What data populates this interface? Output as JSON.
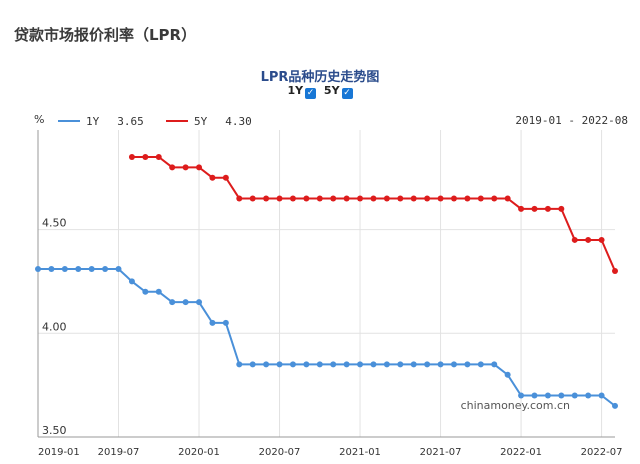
{
  "page_title": "贷款市场报价利率（LPR）",
  "chart_title": "LPR品种历史走势图",
  "toggles": [
    {
      "label": "1Y",
      "checked": true
    },
    {
      "label": "5Y",
      "checked": true
    }
  ],
  "date_range": "2019-01 - 2022-08",
  "watermark": "chinamoney.com.cn",
  "chart_data": {
    "type": "line",
    "ylabel": "%",
    "ylim": [
      3.5,
      4.98
    ],
    "yticks": [
      "4.50",
      "4.00",
      "3.50"
    ],
    "ytick_values": [
      4.5,
      4.0,
      3.5
    ],
    "grid": true,
    "xlim": [
      "2019-01",
      "2022-08"
    ],
    "xticks": [
      "2019-01",
      "2019-07",
      "2020-01",
      "2020-07",
      "2021-01",
      "2021-07",
      "2022-01",
      "2022-07"
    ],
    "legend_position": "top-left",
    "series": [
      {
        "name": "1Y",
        "latest_label": "3.65",
        "color": "#4a90d9",
        "points": [
          [
            "2019-01",
            4.31
          ],
          [
            "2019-02",
            4.31
          ],
          [
            "2019-03",
            4.31
          ],
          [
            "2019-04",
            4.31
          ],
          [
            "2019-05",
            4.31
          ],
          [
            "2019-06",
            4.31
          ],
          [
            "2019-07",
            4.31
          ],
          [
            "2019-08",
            4.25
          ],
          [
            "2019-09",
            4.2
          ],
          [
            "2019-10",
            4.2
          ],
          [
            "2019-11",
            4.15
          ],
          [
            "2019-12",
            4.15
          ],
          [
            "2020-01",
            4.15
          ],
          [
            "2020-02",
            4.05
          ],
          [
            "2020-03",
            4.05
          ],
          [
            "2020-04",
            3.85
          ],
          [
            "2020-05",
            3.85
          ],
          [
            "2020-06",
            3.85
          ],
          [
            "2020-07",
            3.85
          ],
          [
            "2020-08",
            3.85
          ],
          [
            "2020-09",
            3.85
          ],
          [
            "2020-10",
            3.85
          ],
          [
            "2020-11",
            3.85
          ],
          [
            "2020-12",
            3.85
          ],
          [
            "2021-01",
            3.85
          ],
          [
            "2021-02",
            3.85
          ],
          [
            "2021-03",
            3.85
          ],
          [
            "2021-04",
            3.85
          ],
          [
            "2021-05",
            3.85
          ],
          [
            "2021-06",
            3.85
          ],
          [
            "2021-07",
            3.85
          ],
          [
            "2021-08",
            3.85
          ],
          [
            "2021-09",
            3.85
          ],
          [
            "2021-10",
            3.85
          ],
          [
            "2021-11",
            3.85
          ],
          [
            "2021-12",
            3.8
          ],
          [
            "2022-01",
            3.7
          ],
          [
            "2022-02",
            3.7
          ],
          [
            "2022-03",
            3.7
          ],
          [
            "2022-04",
            3.7
          ],
          [
            "2022-05",
            3.7
          ],
          [
            "2022-06",
            3.7
          ],
          [
            "2022-07",
            3.7
          ],
          [
            "2022-08",
            3.65
          ]
        ]
      },
      {
        "name": "5Y",
        "latest_label": "4.30",
        "color": "#dd1c1c",
        "points": [
          [
            "2019-08",
            4.85
          ],
          [
            "2019-09",
            4.85
          ],
          [
            "2019-10",
            4.85
          ],
          [
            "2019-11",
            4.8
          ],
          [
            "2019-12",
            4.8
          ],
          [
            "2020-01",
            4.8
          ],
          [
            "2020-02",
            4.75
          ],
          [
            "2020-03",
            4.75
          ],
          [
            "2020-04",
            4.65
          ],
          [
            "2020-05",
            4.65
          ],
          [
            "2020-06",
            4.65
          ],
          [
            "2020-07",
            4.65
          ],
          [
            "2020-08",
            4.65
          ],
          [
            "2020-09",
            4.65
          ],
          [
            "2020-10",
            4.65
          ],
          [
            "2020-11",
            4.65
          ],
          [
            "2020-12",
            4.65
          ],
          [
            "2021-01",
            4.65
          ],
          [
            "2021-02",
            4.65
          ],
          [
            "2021-03",
            4.65
          ],
          [
            "2021-04",
            4.65
          ],
          [
            "2021-05",
            4.65
          ],
          [
            "2021-06",
            4.65
          ],
          [
            "2021-07",
            4.65
          ],
          [
            "2021-08",
            4.65
          ],
          [
            "2021-09",
            4.65
          ],
          [
            "2021-10",
            4.65
          ],
          [
            "2021-11",
            4.65
          ],
          [
            "2021-12",
            4.65
          ],
          [
            "2022-01",
            4.6
          ],
          [
            "2022-02",
            4.6
          ],
          [
            "2022-03",
            4.6
          ],
          [
            "2022-04",
            4.6
          ],
          [
            "2022-05",
            4.45
          ],
          [
            "2022-06",
            4.45
          ],
          [
            "2022-07",
            4.45
          ],
          [
            "2022-08",
            4.3
          ]
        ]
      }
    ]
  }
}
